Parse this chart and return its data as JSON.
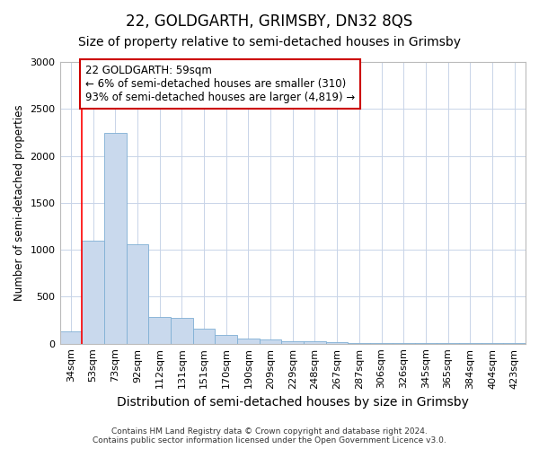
{
  "title": "22, GOLDGARTH, GRIMSBY, DN32 8QS",
  "subtitle": "Size of property relative to semi-detached houses in Grimsby",
  "xlabel": "Distribution of semi-detached houses by size in Grimsby",
  "ylabel": "Number of semi-detached properties",
  "categories": [
    "34sqm",
    "53sqm",
    "73sqm",
    "92sqm",
    "112sqm",
    "131sqm",
    "151sqm",
    "170sqm",
    "190sqm",
    "209sqm",
    "229sqm",
    "248sqm",
    "267sqm",
    "287sqm",
    "306sqm",
    "326sqm",
    "345sqm",
    "365sqm",
    "384sqm",
    "404sqm",
    "423sqm"
  ],
  "values": [
    130,
    1100,
    2240,
    1060,
    280,
    270,
    155,
    90,
    50,
    40,
    30,
    30,
    20,
    10,
    5,
    3,
    3,
    2,
    2,
    2,
    2
  ],
  "bar_color": "#c9d9ed",
  "bar_edge_color": "#7fafd4",
  "red_line_x": 0.5,
  "annotation_text": "22 GOLDGARTH: 59sqm\n← 6% of semi-detached houses are smaller (310)\n93% of semi-detached houses are larger (4,819) →",
  "annotation_box_color": "#ffffff",
  "annotation_box_edge": "#cc0000",
  "ylim": [
    0,
    3000
  ],
  "yticks": [
    0,
    500,
    1000,
    1500,
    2000,
    2500,
    3000
  ],
  "footer": "Contains HM Land Registry data © Crown copyright and database right 2024.\nContains public sector information licensed under the Open Government Licence v3.0.",
  "title_fontsize": 12,
  "subtitle_fontsize": 10,
  "xlabel_fontsize": 10,
  "ylabel_fontsize": 8.5,
  "tick_fontsize": 8,
  "footer_fontsize": 6.5,
  "annotation_fontsize": 8.5
}
